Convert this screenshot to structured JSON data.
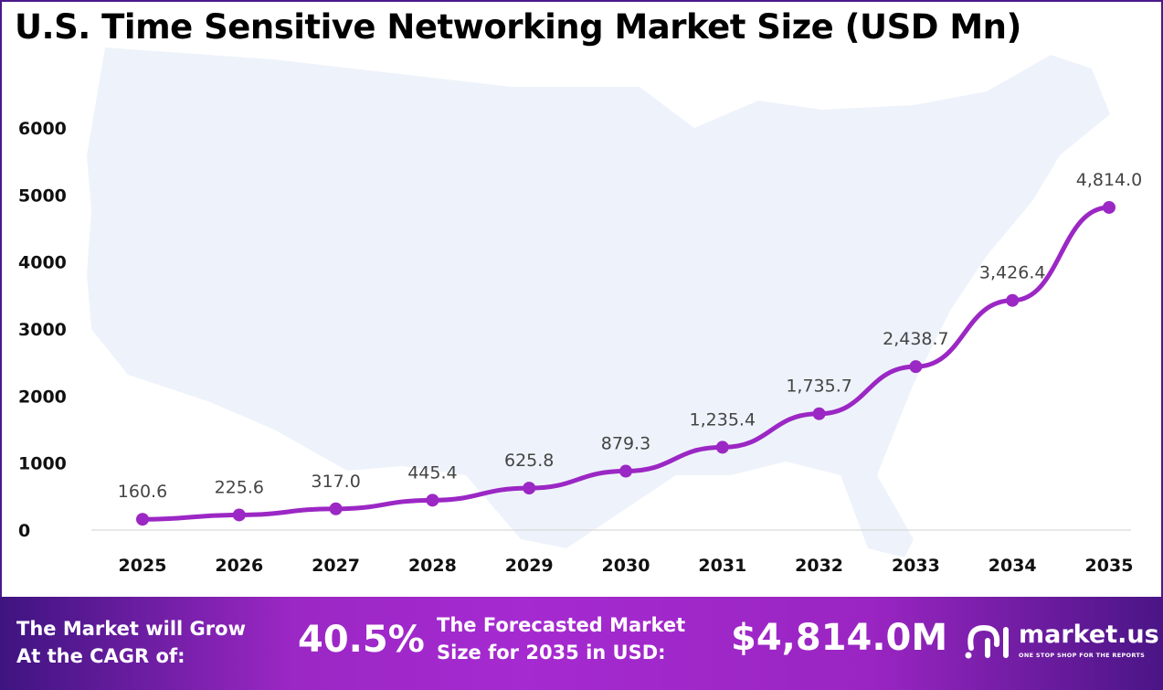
{
  "chart_data": {
    "type": "line",
    "title": "U.S. Time Sensitive Networking Market Size (USD Mn)",
    "categories": [
      "2025",
      "2026",
      "2027",
      "2028",
      "2029",
      "2030",
      "2031",
      "2032",
      "2033",
      "2034",
      "2035"
    ],
    "values": [
      160.6,
      225.6,
      317.0,
      445.4,
      625.8,
      879.3,
      1235.4,
      1735.7,
      2438.7,
      3426.4,
      4814.0
    ],
    "data_labels": [
      "160.6",
      "225.6",
      "317.0",
      "445.4",
      "625.8",
      "879.3",
      "1,235.4",
      "1,735.7",
      "2,438.7",
      "3,426.4",
      "4,814.0"
    ],
    "ylim": [
      0,
      6000
    ],
    "yticks": [
      "0",
      "1000",
      "2000",
      "3000",
      "4000",
      "5000",
      "6000"
    ],
    "grid": false,
    "line_color": "#9b27c4"
  },
  "footer": {
    "cagr_label_1": "The Market will Grow",
    "cagr_label_2": "At the CAGR of:",
    "cagr_value": "40.5%",
    "forecast_label_1": "The Forecasted Market",
    "forecast_label_2": "Size for 2035 in USD:",
    "forecast_value": "$4,814.0M",
    "brand": "market.us",
    "tagline": "ONE STOP SHOP FOR THE REPORTS"
  }
}
